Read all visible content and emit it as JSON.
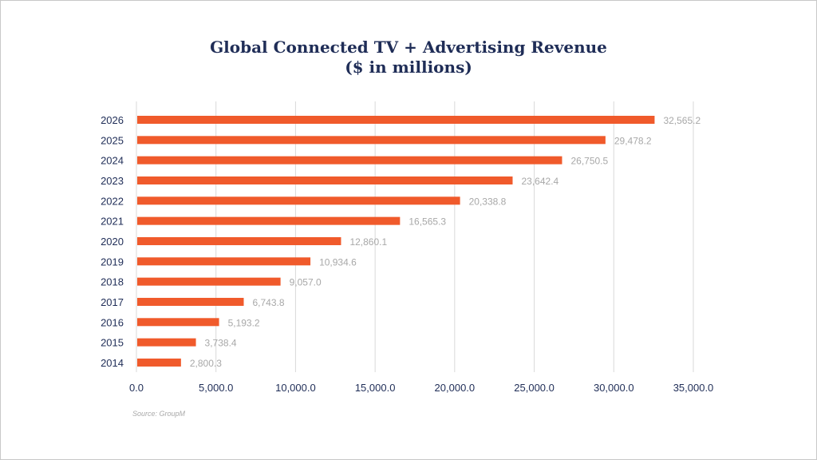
{
  "chart_data": {
    "type": "bar",
    "orientation": "horizontal",
    "title": "Global Connected TV + Advertising Revenue",
    "subtitle": "($ in millions)",
    "xlabel": "",
    "ylabel": "",
    "categories": [
      "2026",
      "2025",
      "2024",
      "2023",
      "2022",
      "2021",
      "2020",
      "2019",
      "2018",
      "2017",
      "2016",
      "2015",
      "2014"
    ],
    "values": [
      32565.2,
      29478.2,
      26750.5,
      23642.4,
      20338.8,
      16565.3,
      12860.1,
      10934.6,
      9057.0,
      6743.8,
      5193.2,
      3738.4,
      2800.3
    ],
    "value_labels": [
      "32,565.2",
      "29,478.2",
      "26,750.5",
      "23,642.4",
      "20,338.8",
      "16,565.3",
      "12,860.1",
      "10,934.6",
      "9,057.0",
      "6,743.8",
      "5,193.2",
      "3,738.4",
      "2,800.3"
    ],
    "xlim": [
      0,
      35000
    ],
    "xticks": [
      0,
      5000,
      10000,
      15000,
      20000,
      25000,
      30000,
      35000
    ],
    "xtick_labels": [
      "0.0",
      "5,000.0",
      "10,000.0",
      "15,000.0",
      "20,000.0",
      "25,000.0",
      "30,000.0",
      "35,000.0"
    ],
    "grid": "vertical",
    "legend": "none",
    "source": "Source: GroupM",
    "colors": {
      "bar": "#f05a2b",
      "title": "#1f2d57",
      "tick": "#1f2d57",
      "value_label": "#a8a8a8",
      "grid": "#d9d9d9"
    }
  }
}
